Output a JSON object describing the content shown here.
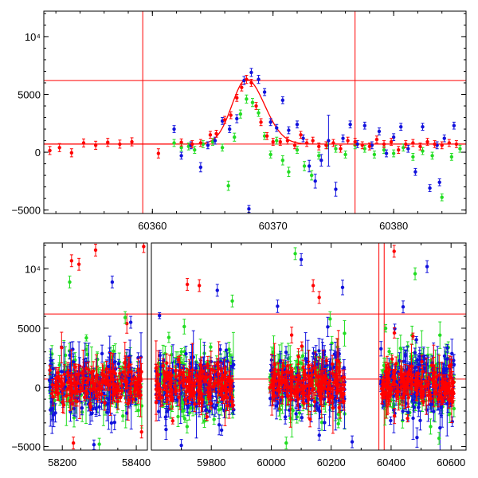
{
  "colors": {
    "red": "#ff0000",
    "green": "#22dd22",
    "blue": "#1111dd",
    "frame": "#000000"
  },
  "chart_data": [
    {
      "type": "scatter",
      "title": "",
      "xlabel": "",
      "ylabel": "",
      "xlim": [
        60351,
        60386
      ],
      "ylim": [
        -5300,
        12200
      ],
      "xticks": [
        60360,
        60370,
        60380
      ],
      "xtick_labels": [
        "60360",
        "60370",
        "60380"
      ],
      "yticks": [
        -5000,
        0,
        5000,
        10000
      ],
      "ytick_labels": [
        "−5000",
        "0",
        "5000",
        "10⁴"
      ],
      "vlines": [
        60359.2,
        60376.8
      ],
      "hlines": [
        6200,
        700
      ],
      "model_curve": {
        "baseline": 700,
        "peak_x": 60367.8,
        "peak_y": 6300,
        "rise_sigma": 1.2,
        "fall_sigma": 1.5
      },
      "series": [
        {
          "color": "red",
          "points": [
            [
              60351.5,
              150,
              350
            ],
            [
              60352.3,
              400,
              350
            ],
            [
              60353.3,
              -50,
              350
            ],
            [
              60354.3,
              800,
              350
            ],
            [
              60355.3,
              600,
              350
            ],
            [
              60356.3,
              850,
              350
            ],
            [
              60357.3,
              700,
              350
            ],
            [
              60358.3,
              900,
              350
            ],
            [
              60360.5,
              -100,
              400
            ],
            [
              60362.4,
              850,
              300
            ],
            [
              60363.3,
              700,
              300
            ],
            [
              60364.0,
              800,
              300
            ],
            [
              60364.8,
              1500,
              300
            ],
            [
              60365.3,
              1600,
              300
            ],
            [
              60366.0,
              2800,
              300
            ],
            [
              60366.5,
              3200,
              300
            ],
            [
              60367.0,
              4700,
              300
            ],
            [
              60367.4,
              5600,
              300
            ],
            [
              60367.8,
              6300,
              350
            ],
            [
              60368.2,
              6000,
              300
            ],
            [
              60368.6,
              4000,
              300
            ],
            [
              60369.0,
              2600,
              300
            ],
            [
              60369.5,
              1400,
              300
            ],
            [
              60370.0,
              900,
              300
            ],
            [
              60370.6,
              900,
              300
            ],
            [
              60371.2,
              1000,
              300
            ],
            [
              60371.8,
              600,
              300
            ],
            [
              60372.3,
              1500,
              300
            ],
            [
              60372.8,
              800,
              300
            ],
            [
              60373.3,
              1000,
              300
            ],
            [
              60373.8,
              500,
              300
            ],
            [
              60374.4,
              600,
              300
            ],
            [
              60375.0,
              800,
              300
            ],
            [
              60375.6,
              300,
              300
            ],
            [
              60376.2,
              1000,
              300
            ],
            [
              60376.8,
              900,
              300
            ],
            [
              60377.4,
              600,
              300
            ],
            [
              60378.0,
              500,
              300
            ],
            [
              60378.6,
              1100,
              300
            ],
            [
              60379.2,
              700,
              300
            ],
            [
              60379.8,
              900,
              300
            ],
            [
              60380.4,
              200,
              300
            ],
            [
              60381.0,
              700,
              300
            ],
            [
              60381.6,
              800,
              300
            ],
            [
              60382.2,
              500,
              300
            ],
            [
              60382.8,
              900,
              300
            ],
            [
              60383.4,
              700,
              300
            ],
            [
              60384.0,
              600,
              300
            ],
            [
              60384.6,
              800,
              300
            ],
            [
              60385.2,
              700,
              300
            ]
          ]
        },
        {
          "color": "green",
          "points": [
            [
              60361.8,
              800,
              300
            ],
            [
              60362.4,
              400,
              300
            ],
            [
              60363.0,
              500,
              300
            ],
            [
              60363.5,
              200,
              300
            ],
            [
              60364.2,
              700,
              300
            ],
            [
              60365.0,
              900,
              300
            ],
            [
              60365.8,
              400,
              300
            ],
            [
              60366.3,
              -2900,
              400
            ],
            [
              60366.8,
              1300,
              350
            ],
            [
              60367.3,
              3300,
              350
            ],
            [
              60367.8,
              4600,
              350
            ],
            [
              60368.3,
              4300,
              350
            ],
            [
              60368.8,
              3400,
              300
            ],
            [
              60369.3,
              1400,
              300
            ],
            [
              60369.8,
              -200,
              300
            ],
            [
              60370.3,
              1000,
              300
            ],
            [
              60370.8,
              -700,
              400
            ],
            [
              60371.3,
              -1700,
              400
            ],
            [
              60372.0,
              200,
              300
            ],
            [
              60372.6,
              -1200,
              400
            ],
            [
              60373.2,
              -2000,
              400
            ],
            [
              60373.8,
              -300,
              300
            ],
            [
              60374.5,
              600,
              300
            ],
            [
              60375.2,
              300,
              300
            ],
            [
              60376.0,
              -200,
              300
            ],
            [
              60376.8,
              600,
              300
            ],
            [
              60377.6,
              300,
              300
            ],
            [
              60378.4,
              -200,
              300
            ],
            [
              60379.2,
              200,
              300
            ],
            [
              60380.0,
              -100,
              300
            ],
            [
              60380.8,
              400,
              300
            ],
            [
              60381.6,
              -400,
              300
            ],
            [
              60382.4,
              100,
              300
            ],
            [
              60383.2,
              -300,
              300
            ],
            [
              60384.0,
              -3900,
              300
            ],
            [
              60384.8,
              -400,
              300
            ],
            [
              60385.5,
              300,
              300
            ]
          ]
        },
        {
          "color": "blue",
          "points": [
            [
              60361.8,
              2000,
              300
            ],
            [
              60362.4,
              -300,
              300
            ],
            [
              60363.2,
              600,
              300
            ],
            [
              60364.0,
              -1300,
              400
            ],
            [
              60364.6,
              600,
              300
            ],
            [
              60365.2,
              1000,
              300
            ],
            [
              60365.8,
              2700,
              300
            ],
            [
              60366.4,
              2000,
              300
            ],
            [
              60367.0,
              2900,
              350
            ],
            [
              60367.6,
              6200,
              350
            ],
            [
              60368.2,
              6900,
              350
            ],
            [
              60368.8,
              6300,
              350
            ],
            [
              60369.3,
              5200,
              300
            ],
            [
              60369.8,
              2600,
              300
            ],
            [
              60370.3,
              2100,
              300
            ],
            [
              60370.8,
              4500,
              300
            ],
            [
              60371.3,
              1900,
              300
            ],
            [
              60372.0,
              2400,
              300
            ],
            [
              60372.5,
              1200,
              300
            ],
            [
              60373.0,
              -1200,
              500
            ],
            [
              60373.5,
              -2500,
              600
            ],
            [
              60374.0,
              -700,
              500
            ],
            [
              60374.6,
              1000,
              2200
            ],
            [
              60375.2,
              -3200,
              600
            ],
            [
              60375.8,
              1200,
              300
            ],
            [
              60376.4,
              2400,
              300
            ],
            [
              60377.0,
              700,
              300
            ],
            [
              60377.6,
              2300,
              300
            ],
            [
              60378.2,
              600,
              300
            ],
            [
              60378.8,
              1800,
              300
            ],
            [
              60379.4,
              -100,
              300
            ],
            [
              60380.0,
              1300,
              300
            ],
            [
              60380.6,
              2200,
              300
            ],
            [
              60381.2,
              300,
              300
            ],
            [
              60381.8,
              -1700,
              300
            ],
            [
              60382.4,
              2200,
              300
            ],
            [
              60383.0,
              -3100,
              300
            ],
            [
              60383.6,
              600,
              300
            ],
            [
              60384.2,
              1200,
              300
            ],
            [
              60385.0,
              2300,
              300
            ],
            [
              60368.0,
              -4900,
              300
            ],
            [
              60383.8,
              -2600,
              300
            ]
          ]
        }
      ]
    },
    {
      "type": "scatter",
      "title": "",
      "xlabel": "",
      "ylabel": "",
      "xlim": [
        58120,
        60650
      ],
      "ylim": [
        -5300,
        12200
      ],
      "axis_break": true,
      "xticks": [
        58200,
        58400,
        59800,
        60000,
        60200,
        60400,
        60600
      ],
      "xtick_labels": [
        "58200",
        "58400",
        "59800",
        "60000",
        "60200",
        "60400",
        "60600"
      ],
      "yticks": [
        -5000,
        0,
        5000,
        10000
      ],
      "ytick_labels": [
        "−5000",
        "0",
        "5000",
        "10⁴"
      ],
      "vlines": [
        60359.2,
        60376.8
      ],
      "hlines": [
        6200,
        700
      ],
      "season_ranges": [
        [
          58165,
          58415
        ],
        [
          59615,
          59875
        ],
        [
          59995,
          60245
        ],
        [
          60365,
          60610
        ]
      ],
      "series_colors": [
        "red",
        "green",
        "blue"
      ],
      "points_per_season": 170,
      "typical_value": 300,
      "typical_scatter": 1300,
      "outliers": [
        [
          "red",
          58290,
          11600
        ],
        [
          "red",
          58420,
          11900
        ],
        [
          "red",
          58225,
          10700
        ],
        [
          "green",
          58220,
          8900
        ],
        [
          "blue",
          58335,
          8900
        ],
        [
          "red",
          58245,
          10400
        ],
        [
          "green",
          58370,
          5900
        ],
        [
          "blue",
          58385,
          5500
        ],
        [
          "red",
          59720,
          8700
        ],
        [
          "red",
          59760,
          8600
        ],
        [
          "blue",
          59820,
          8200
        ],
        [
          "green",
          59870,
          7300
        ],
        [
          "red",
          60140,
          8600
        ],
        [
          "green",
          60080,
          11300
        ],
        [
          "blue",
          60100,
          10800
        ],
        [
          "red",
          60160,
          7600
        ],
        [
          "red",
          60410,
          11500
        ],
        [
          "green",
          60480,
          9600
        ],
        [
          "blue",
          60520,
          10200
        ],
        [
          "blue",
          60440,
          6800
        ],
        [
          "red",
          58230,
          -4700
        ],
        [
          "green",
          58300,
          -4800
        ],
        [
          "blue",
          59700,
          -4900
        ],
        [
          "green",
          60050,
          -4700
        ],
        [
          "blue",
          60270,
          -4600
        ],
        [
          "green",
          60560,
          -4300
        ]
      ]
    }
  ]
}
